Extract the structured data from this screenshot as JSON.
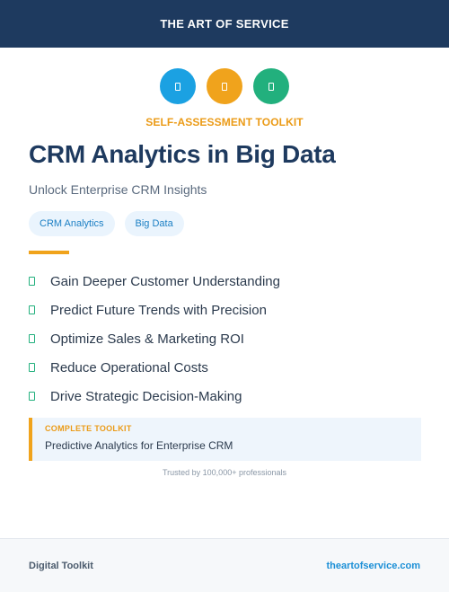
{
  "header": {
    "brand": "THE ART OF SERVICE"
  },
  "icons": [
    {
      "name": "document-icon",
      "color": "#1ba1e2"
    },
    {
      "name": "document-icon",
      "color": "#f0a31c"
    },
    {
      "name": "document-icon",
      "color": "#22b07d"
    }
  ],
  "kicker": "SELF-ASSESSMENT TOOLKIT",
  "title": "CRM Analytics in Big Data",
  "subtitle": "Unlock Enterprise CRM Insights",
  "tags": [
    "CRM Analytics",
    "Big Data"
  ],
  "benefits": [
    "Gain Deeper Customer Understanding",
    "Predict Future Trends with Precision",
    "Optimize Sales & Marketing ROI",
    "Reduce Operational Costs",
    "Drive Strategic Decision-Making"
  ],
  "callout": {
    "label": "COMPLETE TOOLKIT",
    "text": "Predictive Analytics for Enterprise CRM"
  },
  "trust": "Trusted by 100,000+ professionals",
  "footer": {
    "left": "Digital Toolkit",
    "right": "theartofservice.com"
  },
  "colors": {
    "navy": "#1e3a5f",
    "orange": "#f0a31c",
    "blue": "#1ba1e2",
    "green": "#22b07d"
  }
}
